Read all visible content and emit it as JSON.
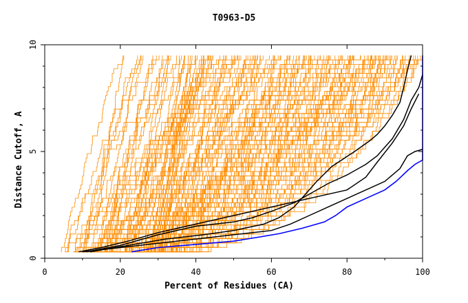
{
  "chart_data": {
    "type": "line",
    "title": "T0963-D5",
    "xlabel": "Percent of Residues (CA)",
    "ylabel": "Distance Cutoff, A",
    "xlim": [
      0,
      100
    ],
    "ylim": [
      0,
      10
    ],
    "x_ticks": [
      "0",
      "20",
      "40",
      "60",
      "80",
      "100"
    ],
    "y_ticks": [
      "0",
      "5",
      "10"
    ],
    "grid": false,
    "colors": {
      "background_models": "#ff8c00",
      "highlight": "#000000",
      "best": "#0000ff"
    },
    "highlight_series": [
      {
        "color": "#000000",
        "points": [
          [
            9,
            0.3
          ],
          [
            15,
            0.5
          ],
          [
            22,
            0.8
          ],
          [
            30,
            1.2
          ],
          [
            40,
            1.6
          ],
          [
            50,
            2.0
          ],
          [
            60,
            2.4
          ],
          [
            70,
            2.8
          ],
          [
            80,
            3.2
          ],
          [
            85,
            3.8
          ],
          [
            88,
            4.5
          ],
          [
            92,
            5.4
          ],
          [
            95,
            6.2
          ],
          [
            97,
            7.0
          ],
          [
            99,
            7.7
          ]
        ]
      },
      {
        "color": "#000000",
        "points": [
          [
            11,
            0.3
          ],
          [
            20,
            0.6
          ],
          [
            30,
            1.1
          ],
          [
            40,
            1.5
          ],
          [
            50,
            1.7
          ],
          [
            55,
            1.9
          ],
          [
            60,
            2.2
          ],
          [
            66,
            2.6
          ],
          [
            70,
            3.0
          ],
          [
            75,
            3.5
          ],
          [
            80,
            3.9
          ],
          [
            85,
            4.4
          ],
          [
            88,
            4.8
          ],
          [
            90,
            5.2
          ],
          [
            92,
            5.6
          ],
          [
            95,
            6.5
          ],
          [
            97,
            7.4
          ],
          [
            99,
            8.0
          ],
          [
            100,
            8.6
          ]
        ]
      },
      {
        "color": "#000000",
        "points": [
          [
            12,
            0.3
          ],
          [
            22,
            0.6
          ],
          [
            32,
            0.9
          ],
          [
            42,
            1.1
          ],
          [
            50,
            1.3
          ],
          [
            58,
            1.6
          ],
          [
            62,
            1.9
          ],
          [
            66,
            2.4
          ],
          [
            69,
            3.0
          ],
          [
            72,
            3.6
          ],
          [
            76,
            4.3
          ],
          [
            82,
            5.0
          ],
          [
            86,
            5.5
          ],
          [
            88,
            5.8
          ],
          [
            90,
            6.2
          ],
          [
            92,
            6.7
          ],
          [
            94,
            7.3
          ],
          [
            95,
            8.0
          ],
          [
            96,
            8.8
          ],
          [
            97,
            9.5
          ]
        ]
      },
      {
        "color": "#000000",
        "points": [
          [
            10,
            0.3
          ],
          [
            20,
            0.5
          ],
          [
            30,
            0.7
          ],
          [
            40,
            0.9
          ],
          [
            50,
            1.1
          ],
          [
            60,
            1.3
          ],
          [
            65,
            1.6
          ],
          [
            70,
            2.0
          ],
          [
            75,
            2.4
          ],
          [
            80,
            2.8
          ],
          [
            85,
            3.2
          ],
          [
            90,
            3.6
          ],
          [
            94,
            4.2
          ],
          [
            96,
            4.8
          ],
          [
            98,
            5.0
          ],
          [
            100,
            5.1
          ]
        ]
      }
    ],
    "best_series": {
      "color": "#0000ff",
      "points": [
        [
          23,
          0.3
        ],
        [
          30,
          0.5
        ],
        [
          40,
          0.65
        ],
        [
          50,
          0.8
        ],
        [
          57,
          1.0
        ],
        [
          62,
          1.15
        ],
        [
          68,
          1.4
        ],
        [
          74,
          1.7
        ],
        [
          77,
          2.0
        ],
        [
          80,
          2.4
        ],
        [
          85,
          2.8
        ],
        [
          90,
          3.2
        ],
        [
          93,
          3.6
        ],
        [
          96,
          4.1
        ],
        [
          98,
          4.4
        ],
        [
          100,
          4.6
        ],
        [
          100,
          5.0
        ],
        [
          100,
          6.0
        ],
        [
          100,
          7.0
        ],
        [
          100,
          8.0
        ],
        [
          100,
          9.5
        ]
      ]
    }
  }
}
